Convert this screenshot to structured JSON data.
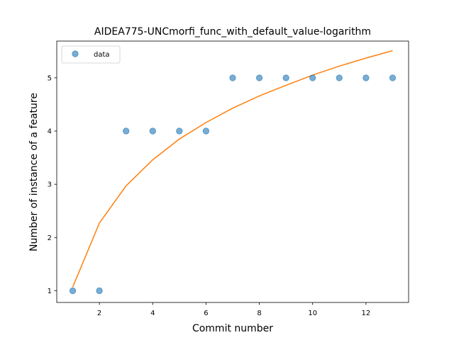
{
  "chart_data": {
    "type": "scatter",
    "title": "AIDEA775-UNCmorfi_func_with_default_value-logarithm",
    "xlabel": "Commit number",
    "ylabel": "Number of instance of a feature",
    "xlim": [
      0.4,
      13.6
    ],
    "ylim": [
      0.78,
      5.69
    ],
    "x_ticks": [
      2,
      4,
      6,
      8,
      10,
      12
    ],
    "y_ticks": [
      1,
      2,
      3,
      4,
      5
    ],
    "grid": false,
    "legend": {
      "placement": "top-left",
      "entries": [
        "data"
      ]
    },
    "series": [
      {
        "name": "data",
        "kind": "scatter",
        "color": "#1f77b4",
        "x": [
          1,
          2,
          3,
          4,
          5,
          6,
          7,
          8,
          9,
          10,
          11,
          12,
          13
        ],
        "y": [
          1,
          1,
          4,
          4,
          4,
          4,
          5,
          5,
          5,
          5,
          5,
          5,
          5
        ]
      },
      {
        "kind": "line",
        "color": "#ff7f0e",
        "x": [
          1,
          2,
          3,
          4,
          5,
          6,
          7,
          8,
          9,
          10,
          11,
          12,
          13
        ],
        "y": [
          1.07,
          2.27,
          2.97,
          3.46,
          3.85,
          4.16,
          4.43,
          4.66,
          4.86,
          5.05,
          5.22,
          5.37,
          5.51
        ]
      }
    ]
  }
}
